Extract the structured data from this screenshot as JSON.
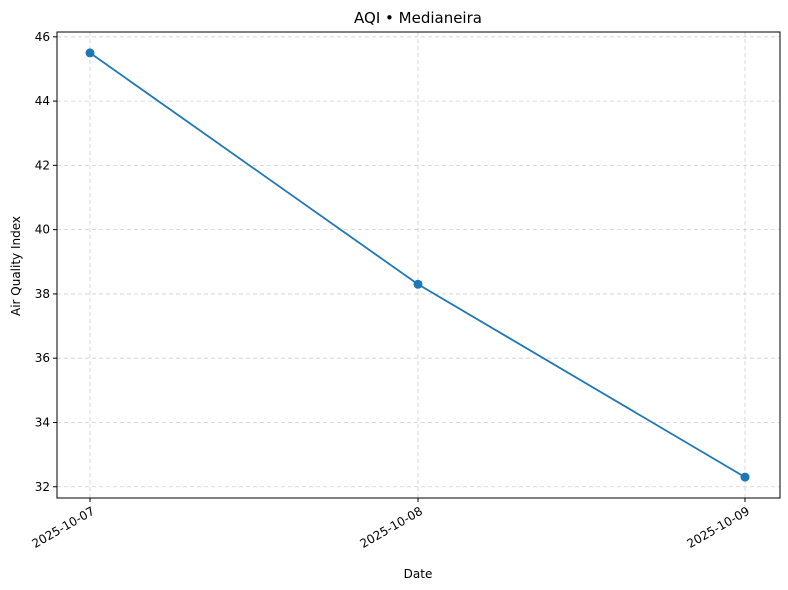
{
  "chart_data": {
    "type": "line",
    "title": "AQI • Medianeira",
    "xlabel": "Date",
    "ylabel": "Air Quality Index",
    "x": [
      "2025-10-07",
      "2025-10-08",
      "2025-10-09"
    ],
    "series": [
      {
        "values": [
          45.5,
          38.3,
          32.3
        ],
        "color": "#1f77b4",
        "marker": "circle"
      }
    ],
    "yticks": [
      32,
      34,
      36,
      38,
      40,
      42,
      44,
      46
    ],
    "ylim": [
      31.65,
      46.15
    ],
    "grid": true,
    "legend": "none"
  }
}
